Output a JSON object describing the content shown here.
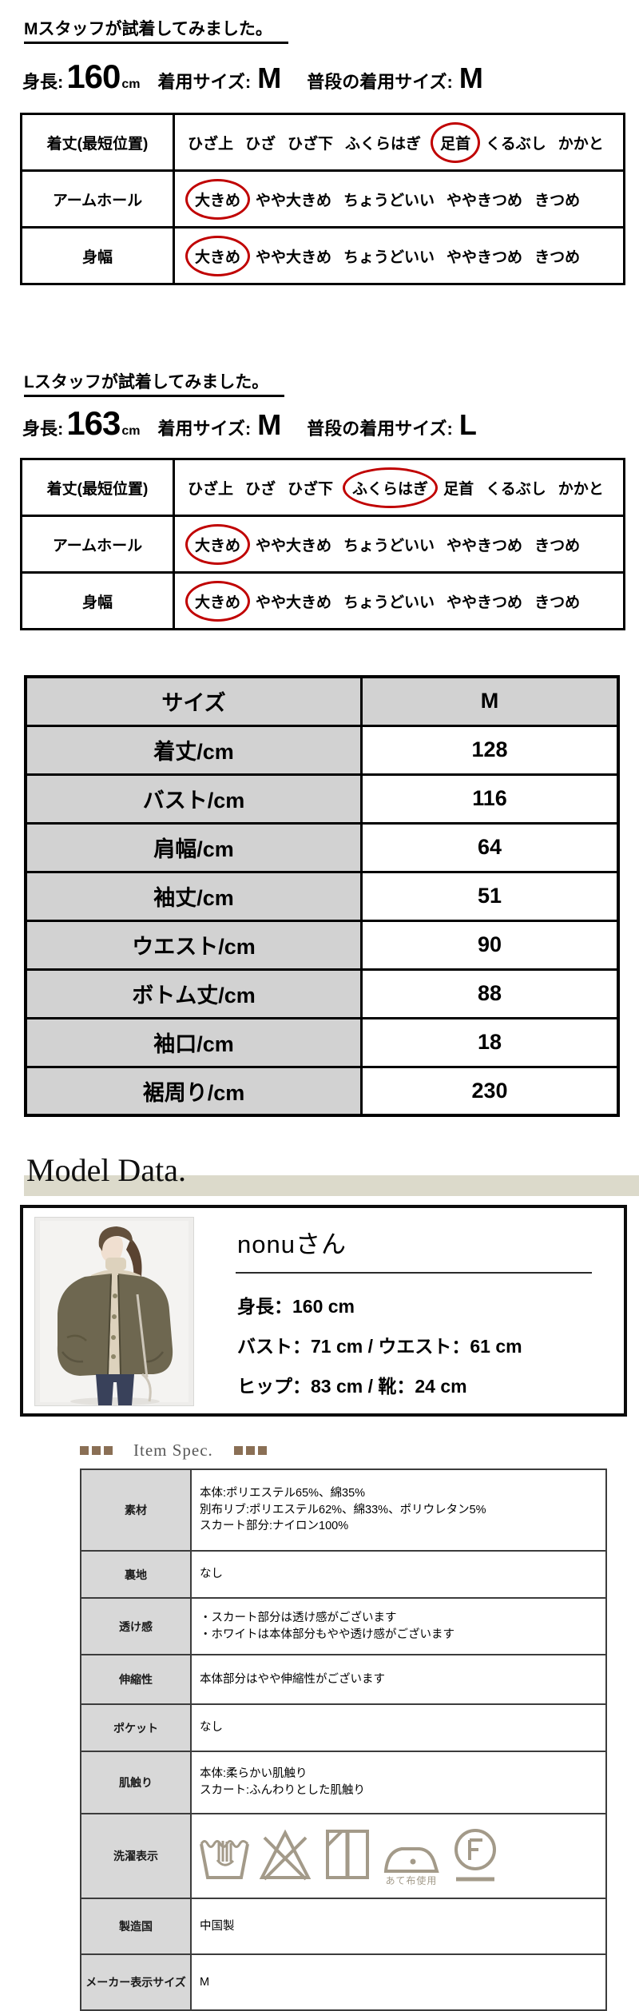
{
  "colors": {
    "circle_red": "#c00000",
    "size_table_gray": "#d2d2d2",
    "band_beige": "#dcdacb",
    "spec_label_gray": "#d8d8d8",
    "care_symbol": "#a39a89",
    "spec_square_brown": "#8a6f55"
  },
  "fit_sections": [
    {
      "heading": "Mスタッフが試着してみました。",
      "info": {
        "height_label": "身長:",
        "height_value": "160",
        "height_unit": "cm",
        "wear_label": "着用サイズ:",
        "wear_value": "M",
        "usual_label": "普段の着用サイズ:",
        "usual_value": "M"
      },
      "rows": [
        {
          "label": "着丈(最短位置)",
          "options": [
            {
              "text": "ひざ上"
            },
            {
              "text": "ひざ"
            },
            {
              "text": "ひざ下"
            },
            {
              "text": "ふくらはぎ"
            },
            {
              "text": "足首",
              "circled": true
            },
            {
              "text": "くるぶし"
            },
            {
              "text": "かかと"
            }
          ]
        },
        {
          "label": "アームホール",
          "options": [
            {
              "text": "大きめ",
              "circled": true
            },
            {
              "text": "やや大きめ"
            },
            {
              "text": "ちょうどいい"
            },
            {
              "text": "ややきつめ"
            },
            {
              "text": "きつめ"
            }
          ]
        },
        {
          "label": "身幅",
          "options": [
            {
              "text": "大きめ",
              "circled": true
            },
            {
              "text": "やや大きめ"
            },
            {
              "text": "ちょうどいい"
            },
            {
              "text": "ややきつめ"
            },
            {
              "text": "きつめ"
            }
          ]
        }
      ]
    },
    {
      "heading": "Lスタッフが試着してみました。",
      "info": {
        "height_label": "身長:",
        "height_value": "163",
        "height_unit": "cm",
        "wear_label": "着用サイズ:",
        "wear_value": "M",
        "usual_label": "普段の着用サイズ:",
        "usual_value": "L"
      },
      "rows": [
        {
          "label": "着丈(最短位置)",
          "options": [
            {
              "text": "ひざ上"
            },
            {
              "text": "ひざ"
            },
            {
              "text": "ひざ下"
            },
            {
              "text": "ふくらはぎ",
              "circled": true
            },
            {
              "text": "足首"
            },
            {
              "text": "くるぶし"
            },
            {
              "text": "かかと"
            }
          ]
        },
        {
          "label": "アームホール",
          "options": [
            {
              "text": "大きめ",
              "circled": true
            },
            {
              "text": "やや大きめ"
            },
            {
              "text": "ちょうどいい"
            },
            {
              "text": "ややきつめ"
            },
            {
              "text": "きつめ"
            }
          ]
        },
        {
          "label": "身幅",
          "options": [
            {
              "text": "大きめ",
              "circled": true
            },
            {
              "text": "やや大きめ"
            },
            {
              "text": "ちょうどいい"
            },
            {
              "text": "ややきつめ"
            },
            {
              "text": "きつめ"
            }
          ]
        }
      ]
    }
  ],
  "size_table": {
    "header": {
      "label": "サイズ",
      "value": "M"
    },
    "rows": [
      [
        "着丈/cm",
        "128"
      ],
      [
        "バスト/cm",
        "116"
      ],
      [
        "肩幅/cm",
        "64"
      ],
      [
        "袖丈/cm",
        "51"
      ],
      [
        "ウエスト/cm",
        "90"
      ],
      [
        "ボトム丈/cm",
        "88"
      ],
      [
        "袖口/cm",
        "18"
      ],
      [
        "裾周り/cm",
        "230"
      ]
    ]
  },
  "model": {
    "heading": "Model Data.",
    "name": "nonuさん",
    "lines": [
      "身長：160 cm",
      "バスト：71 cm / ウエスト：61 cm",
      "ヒップ：83 cm / 靴：24 cm"
    ]
  },
  "item_spec": {
    "heading": "Item Spec.",
    "rows": [
      {
        "label": "素材",
        "lines": [
          "本体:ポリエステル65%、綿35%",
          "別布リブ:ポリエステル62%、綿33%、ポリウレタン5%",
          "スカート部分:ナイロン100%"
        ]
      },
      {
        "label": "裏地",
        "lines": [
          "なし"
        ]
      },
      {
        "label": "透け感",
        "lines": [
          "・スカート部分は透け感がございます",
          "・ホワイトは本体部分もやや透け感がございます"
        ]
      },
      {
        "label": "伸縮性",
        "lines": [
          "本体部分はやや伸縮性がございます"
        ]
      },
      {
        "label": "ポケット",
        "lines": [
          "なし"
        ]
      },
      {
        "label": "肌触り",
        "lines": [
          "本体:柔らかい肌触り",
          "スカート:ふんわりとした肌触り"
        ]
      },
      {
        "label": "洗濯表示",
        "care_icons": [
          "hand-wash-icon",
          "do-not-bleach-icon",
          "line-dry-shade-icon",
          "iron-one-dot-icon",
          "dry-clean-f-gentle-icon"
        ],
        "care_note": "あて布使用"
      },
      {
        "label": "製造国",
        "lines": [
          "中国製"
        ]
      },
      {
        "label": "メーカー表示サイズ",
        "lines": [
          "M"
        ]
      }
    ]
  }
}
